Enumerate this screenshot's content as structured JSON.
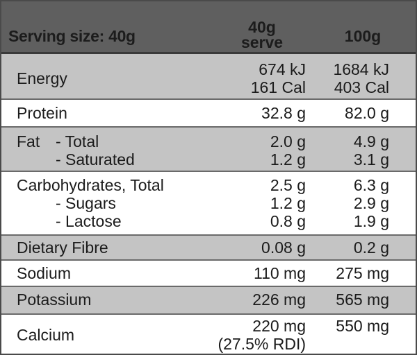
{
  "header": {
    "serving_label": "Serving size: 40g",
    "col1_line1": "40g",
    "col1_line2": "serve",
    "col2": "100g"
  },
  "rows": [
    {
      "name": "Energy",
      "v40": [
        "674 kJ",
        "161 Cal"
      ],
      "v100": [
        "1684 kJ",
        "403 Cal"
      ]
    },
    {
      "name": "Protein",
      "v40": [
        "32.8 g"
      ],
      "v100": [
        "82.0 g"
      ]
    },
    {
      "name": "Fat",
      "sub": [
        "- Total",
        "- Saturated"
      ],
      "v40": [
        "2.0 g",
        "1.2 g"
      ],
      "v100": [
        "4.9 g",
        "3.1 g"
      ]
    },
    {
      "name": "Carbohydrates, Total",
      "sub": [
        "- Sugars",
        "- Lactose"
      ],
      "v40": [
        "2.5 g",
        "1.2 g",
        "0.8 g"
      ],
      "v100": [
        "6.3 g",
        "2.9 g",
        "1.9 g"
      ]
    },
    {
      "name": "Dietary Fibre",
      "v40": [
        "0.08 g"
      ],
      "v100": [
        "0.2 g"
      ]
    },
    {
      "name": "Sodium",
      "v40": [
        "110 mg"
      ],
      "v100": [
        "275 mg"
      ]
    },
    {
      "name": "Potassium",
      "v40": [
        "226 mg"
      ],
      "v100": [
        "565 mg"
      ]
    },
    {
      "name": "Calcium",
      "v40": [
        "220 mg",
        "(27.5% RDI)"
      ],
      "v100": [
        "550 mg"
      ]
    }
  ]
}
